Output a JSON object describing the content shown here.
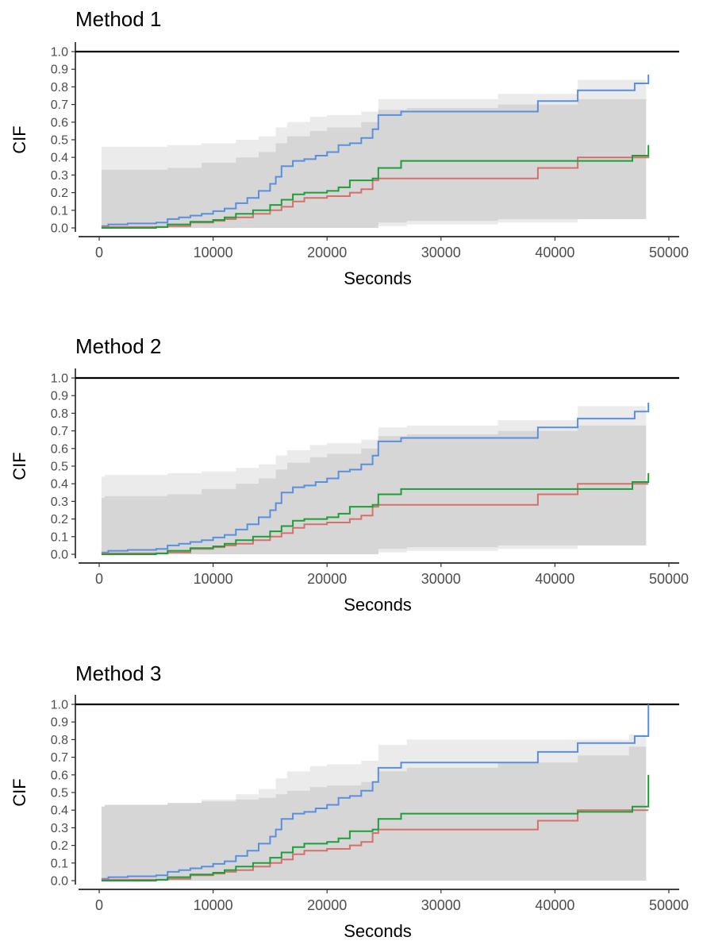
{
  "chart_data": [
    {
      "type": "line",
      "title": "Method 1",
      "xlabel": "Seconds",
      "ylabel": "CIF",
      "xlim": [
        -1500,
        50500
      ],
      "ylim": [
        -0.02,
        1.02
      ],
      "xticks": [
        "0",
        "10000",
        "20000",
        "30000",
        "40000",
        "50000"
      ],
      "yticks": [
        "0.0",
        "0.1",
        "0.2",
        "0.3",
        "0.4",
        "0.5",
        "0.6",
        "0.7",
        "0.8",
        "0.9",
        "1.0"
      ],
      "reference_line": 1.0,
      "grid": false,
      "colors": {
        "blue": "#5a8fde",
        "red": "#d4706a",
        "green": "#1e9e3a",
        "band_outer": "#ebebeb",
        "band_inner": "#d6d6d6"
      },
      "bands": [
        {
          "x": [
            200,
            500,
            6000,
            9000,
            12000,
            14000,
            15500,
            16500,
            18500,
            20000,
            23000,
            24500,
            27000,
            35000,
            42000,
            48000
          ],
          "lower": [
            0,
            0,
            0,
            0,
            0,
            0,
            0,
            0,
            0,
            0,
            0,
            0.01,
            0.02,
            0.03,
            0.05,
            0.15
          ],
          "upper": [
            0.46,
            0.46,
            0.47,
            0.48,
            0.5,
            0.52,
            0.57,
            0.6,
            0.63,
            0.64,
            0.66,
            0.73,
            0.73,
            0.76,
            0.84,
            0.85
          ]
        },
        {
          "x": [
            200,
            500,
            6000,
            9000,
            12000,
            14000,
            15500,
            16500,
            18500,
            20000,
            23000,
            24500,
            27000,
            35000,
            42000,
            48000
          ],
          "lower": [
            0,
            0,
            0,
            0,
            0,
            0,
            0,
            0,
            0,
            0,
            0,
            0.03,
            0.04,
            0.05,
            0.05,
            0.15
          ],
          "upper": [
            0.33,
            0.33,
            0.34,
            0.37,
            0.4,
            0.43,
            0.48,
            0.52,
            0.55,
            0.57,
            0.6,
            0.67,
            0.68,
            0.7,
            0.73,
            0.8
          ]
        }
      ],
      "series": [
        {
          "x": [
            200,
            800,
            2500,
            5000,
            6000,
            7000,
            8000,
            9000,
            10000,
            11000,
            12000,
            13000,
            14000,
            15000,
            15500,
            16000,
            17000,
            18000,
            19000,
            20000,
            21000,
            22000,
            23000,
            24000,
            24500,
            26500,
            38500,
            42000,
            47000,
            48200
          ],
          "y": [
            0.01,
            0.02,
            0.025,
            0.03,
            0.05,
            0.06,
            0.07,
            0.08,
            0.095,
            0.11,
            0.14,
            0.17,
            0.21,
            0.25,
            0.29,
            0.35,
            0.38,
            0.39,
            0.41,
            0.43,
            0.47,
            0.48,
            0.51,
            0.56,
            0.64,
            0.66,
            0.72,
            0.78,
            0.82,
            0.87
          ]
        },
        {
          "x": [
            200,
            6000,
            8000,
            10000,
            11000,
            12000,
            13500,
            15000,
            16000,
            17000,
            18000,
            20000,
            22000,
            23000,
            24000,
            24500,
            26000,
            38500,
            42000,
            48200
          ],
          "y": [
            0.005,
            0.01,
            0.03,
            0.04,
            0.05,
            0.06,
            0.08,
            0.1,
            0.12,
            0.15,
            0.17,
            0.18,
            0.2,
            0.22,
            0.27,
            0.28,
            0.28,
            0.34,
            0.4,
            0.41
          ]
        },
        {
          "x": [
            200,
            5000,
            6000,
            8000,
            10000,
            11000,
            12000,
            13500,
            15000,
            16000,
            17000,
            18000,
            20000,
            21000,
            22000,
            24000,
            24500,
            26500,
            38500,
            42000,
            46800,
            48200
          ],
          "y": [
            0,
            0.005,
            0.02,
            0.035,
            0.045,
            0.06,
            0.08,
            0.1,
            0.13,
            0.16,
            0.19,
            0.2,
            0.21,
            0.23,
            0.27,
            0.28,
            0.34,
            0.38,
            0.38,
            0.38,
            0.41,
            0.47
          ]
        }
      ]
    },
    {
      "type": "line",
      "title": "Method 2",
      "xlabel": "Seconds",
      "ylabel": "CIF",
      "xlim": [
        -1500,
        50500
      ],
      "ylim": [
        -0.02,
        1.02
      ],
      "xticks": [
        "0",
        "10000",
        "20000",
        "30000",
        "40000",
        "50000"
      ],
      "yticks": [
        "0.0",
        "0.1",
        "0.2",
        "0.3",
        "0.4",
        "0.5",
        "0.6",
        "0.7",
        "0.8",
        "0.9",
        "1.0"
      ],
      "reference_line": 1.0,
      "grid": false,
      "colors": {
        "blue": "#5a8fde",
        "red": "#d4706a",
        "green": "#1e9e3a",
        "band_outer": "#ebebeb",
        "band_inner": "#d6d6d6"
      },
      "bands": [
        {
          "x": [
            200,
            500,
            6000,
            9000,
            12000,
            14000,
            15500,
            16500,
            18500,
            20000,
            23000,
            24500,
            27000,
            35000,
            42000,
            48000
          ],
          "lower": [
            0,
            0,
            0,
            0,
            0,
            0,
            0,
            0,
            0,
            0,
            0,
            0.01,
            0.02,
            0.03,
            0.05,
            0.14
          ],
          "upper": [
            0.44,
            0.45,
            0.46,
            0.47,
            0.49,
            0.51,
            0.56,
            0.59,
            0.62,
            0.63,
            0.65,
            0.72,
            0.73,
            0.76,
            0.84,
            0.85
          ]
        },
        {
          "x": [
            200,
            500,
            6000,
            9000,
            12000,
            14000,
            15500,
            16500,
            18500,
            20000,
            23000,
            24500,
            27000,
            35000,
            42000,
            48000
          ],
          "lower": [
            0,
            0,
            0,
            0,
            0,
            0,
            0,
            0,
            0,
            0,
            0,
            0.03,
            0.04,
            0.05,
            0.05,
            0.14
          ],
          "upper": [
            0.32,
            0.33,
            0.34,
            0.37,
            0.4,
            0.43,
            0.48,
            0.52,
            0.55,
            0.57,
            0.6,
            0.67,
            0.68,
            0.7,
            0.73,
            0.79
          ]
        }
      ],
      "series": [
        {
          "x": [
            200,
            800,
            2500,
            5000,
            6000,
            7000,
            8000,
            9000,
            10000,
            11000,
            12000,
            13000,
            14000,
            15000,
            15500,
            16000,
            17000,
            18000,
            19000,
            20000,
            21000,
            22000,
            23000,
            24000,
            24500,
            26500,
            38500,
            42000,
            47000,
            48200
          ],
          "y": [
            0.01,
            0.02,
            0.025,
            0.03,
            0.05,
            0.06,
            0.07,
            0.08,
            0.095,
            0.11,
            0.14,
            0.17,
            0.21,
            0.25,
            0.29,
            0.35,
            0.38,
            0.39,
            0.41,
            0.43,
            0.47,
            0.48,
            0.51,
            0.56,
            0.64,
            0.66,
            0.72,
            0.77,
            0.81,
            0.86
          ]
        },
        {
          "x": [
            200,
            6000,
            8000,
            10000,
            11000,
            12000,
            13500,
            15000,
            16000,
            17000,
            18000,
            20000,
            22000,
            23000,
            24000,
            24500,
            26000,
            38500,
            42000,
            48200
          ],
          "y": [
            0.005,
            0.01,
            0.03,
            0.04,
            0.05,
            0.06,
            0.08,
            0.1,
            0.12,
            0.15,
            0.17,
            0.18,
            0.2,
            0.22,
            0.27,
            0.28,
            0.28,
            0.34,
            0.4,
            0.4
          ]
        },
        {
          "x": [
            200,
            5000,
            6000,
            8000,
            10000,
            11000,
            12000,
            13500,
            15000,
            16000,
            17000,
            18000,
            20000,
            21000,
            22000,
            24000,
            24500,
            26500,
            38500,
            42000,
            46800,
            48200
          ],
          "y": [
            0,
            0.005,
            0.02,
            0.035,
            0.045,
            0.06,
            0.08,
            0.1,
            0.13,
            0.16,
            0.19,
            0.2,
            0.21,
            0.23,
            0.27,
            0.28,
            0.34,
            0.37,
            0.37,
            0.37,
            0.41,
            0.46
          ]
        }
      ]
    },
    {
      "type": "line",
      "title": "Method 3",
      "xlabel": "Seconds",
      "ylabel": "CIF",
      "xlim": [
        -1500,
        50500
      ],
      "ylim": [
        -0.02,
        1.02
      ],
      "xticks": [
        "0",
        "10000",
        "20000",
        "30000",
        "40000",
        "50000"
      ],
      "yticks": [
        "0.0",
        "0.1",
        "0.2",
        "0.3",
        "0.4",
        "0.5",
        "0.6",
        "0.7",
        "0.8",
        "0.9",
        "1.0"
      ],
      "reference_line": 1.0,
      "grid": false,
      "colors": {
        "blue": "#5a8fde",
        "red": "#d4706a",
        "green": "#1e9e3a",
        "band_outer": "#ebebeb",
        "band_inner": "#d6d6d6"
      },
      "bands": [
        {
          "x": [
            200,
            500,
            6000,
            9000,
            12000,
            14000,
            15500,
            16500,
            18500,
            20000,
            23000,
            24500,
            27000,
            35000,
            42000,
            46500,
            48000
          ],
          "lower": [
            0,
            0,
            0,
            0,
            0,
            0,
            0,
            0,
            0,
            0,
            0,
            0,
            0,
            0,
            0,
            0,
            0.17
          ],
          "upper": [
            0.42,
            0.43,
            0.44,
            0.46,
            0.49,
            0.52,
            0.58,
            0.62,
            0.65,
            0.66,
            0.68,
            0.77,
            0.8,
            0.8,
            0.8,
            0.83,
            1.0
          ]
        },
        {
          "x": [
            200,
            500,
            6000,
            9000,
            12000,
            14000,
            15500,
            16500,
            18500,
            20000,
            23000,
            24500,
            27000,
            35000,
            42000,
            46500,
            48000
          ],
          "lower": [
            0,
            0,
            0,
            0,
            0,
            0,
            0,
            0,
            0,
            0,
            0,
            0,
            0,
            0,
            0,
            0,
            0.17
          ],
          "upper": [
            0.42,
            0.43,
            0.44,
            0.45,
            0.46,
            0.47,
            0.49,
            0.51,
            0.53,
            0.54,
            0.56,
            0.62,
            0.64,
            0.67,
            0.71,
            0.76,
            0.88
          ]
        }
      ],
      "series": [
        {
          "x": [
            200,
            800,
            2500,
            5000,
            6000,
            7000,
            8000,
            9000,
            10000,
            11000,
            12000,
            13000,
            14000,
            15000,
            15500,
            16000,
            17000,
            18000,
            19000,
            20000,
            21000,
            22000,
            23000,
            24000,
            24500,
            26500,
            38500,
            42000,
            47000,
            48200
          ],
          "y": [
            0.01,
            0.02,
            0.025,
            0.03,
            0.05,
            0.06,
            0.07,
            0.08,
            0.095,
            0.11,
            0.14,
            0.17,
            0.21,
            0.25,
            0.29,
            0.35,
            0.38,
            0.39,
            0.41,
            0.43,
            0.47,
            0.48,
            0.51,
            0.56,
            0.64,
            0.67,
            0.73,
            0.78,
            0.82,
            1.0
          ]
        },
        {
          "x": [
            200,
            6000,
            8000,
            10000,
            11000,
            12000,
            13500,
            15000,
            16000,
            17000,
            18000,
            20000,
            22000,
            23000,
            24000,
            24500,
            26000,
            38500,
            42000,
            48200
          ],
          "y": [
            0.005,
            0.01,
            0.03,
            0.04,
            0.05,
            0.06,
            0.08,
            0.1,
            0.12,
            0.15,
            0.17,
            0.18,
            0.2,
            0.22,
            0.27,
            0.29,
            0.29,
            0.34,
            0.4,
            0.4
          ]
        },
        {
          "x": [
            200,
            5000,
            6000,
            8000,
            10000,
            11000,
            12000,
            13500,
            15000,
            16000,
            17000,
            18000,
            20000,
            21000,
            22000,
            24000,
            24500,
            26500,
            38500,
            42000,
            46800,
            48200
          ],
          "y": [
            0,
            0.005,
            0.02,
            0.035,
            0.045,
            0.06,
            0.08,
            0.1,
            0.13,
            0.16,
            0.19,
            0.21,
            0.22,
            0.24,
            0.28,
            0.29,
            0.35,
            0.38,
            0.38,
            0.39,
            0.42,
            0.6
          ]
        }
      ]
    }
  ]
}
